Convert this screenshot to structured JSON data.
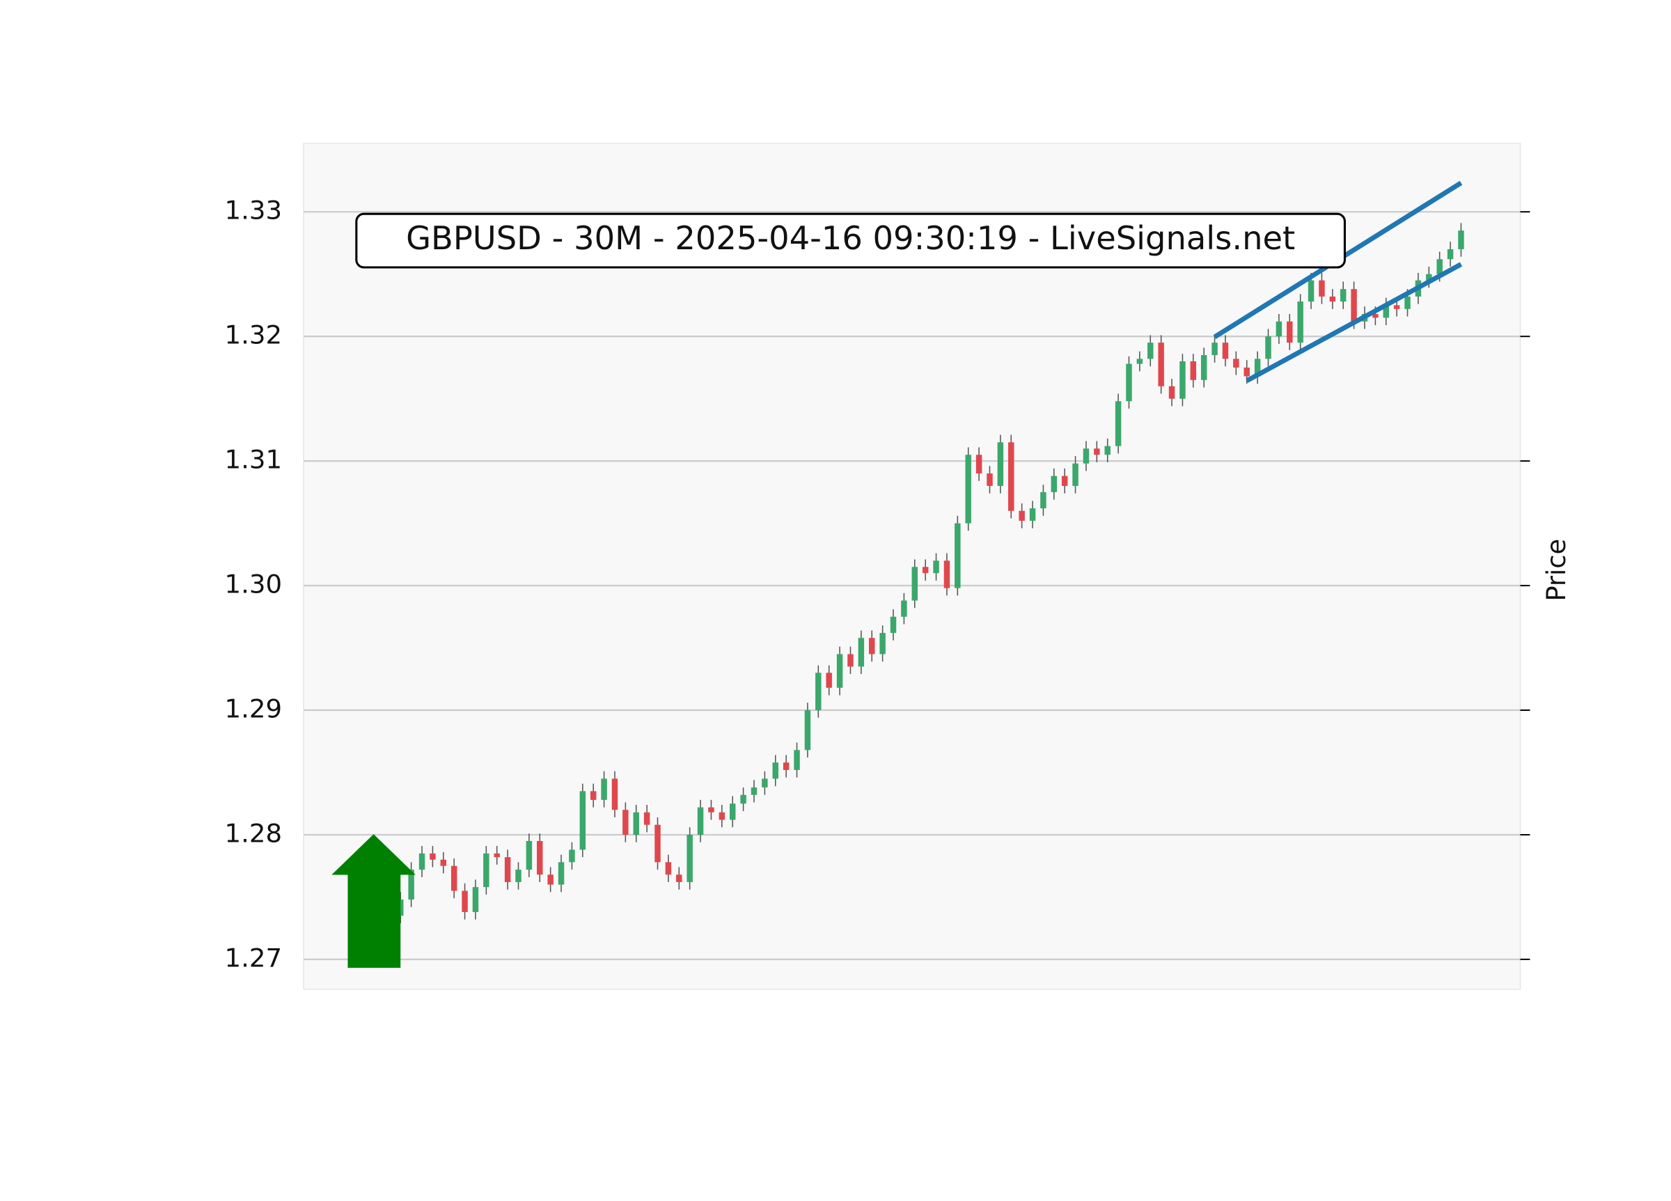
{
  "chart_data": {
    "type": "candlestick",
    "title": "GBPUSD - 30M - 2025-04-16 09:30:19 - LiveSignals.net",
    "ylabel": "Price",
    "ylim": [
      1.2676,
      1.3355
    ],
    "yticks": [
      1.27,
      1.28,
      1.29,
      {
        "value": 1.3,
        "label": "1.30"
      },
      1.31,
      1.32,
      1.33
    ],
    "grid": true,
    "up_color": "#3aa86b",
    "down_color": "#e0474c",
    "wick_color": "#555555",
    "open": [
      1.2735,
      1.2748,
      1.2772,
      1.2785,
      1.278,
      1.2775,
      1.2755,
      1.2738,
      1.2758,
      1.2785,
      1.2782,
      1.2762,
      1.2772,
      1.2795,
      1.2768,
      1.276,
      1.2778,
      1.2788,
      1.2835,
      1.2828,
      1.2845,
      1.282,
      1.28,
      1.2818,
      1.2808,
      1.2778,
      1.2768,
      1.2762,
      1.28,
      1.2822,
      1.2818,
      1.2812,
      1.2825,
      1.2832,
      1.2838,
      1.2845,
      1.2858,
      1.2852,
      1.2868,
      1.29,
      1.293,
      1.2918,
      1.2945,
      1.2935,
      1.2958,
      1.2945,
      1.2962,
      1.2975,
      1.2988,
      1.3015,
      1.301,
      1.302,
      1.2998,
      1.305,
      1.3105,
      1.309,
      1.308,
      1.3115,
      1.306,
      1.3052,
      1.3062,
      1.3075,
      1.3088,
      1.308,
      1.3098,
      1.311,
      1.3105,
      1.3112,
      1.3148,
      1.3178,
      1.3182,
      1.3195,
      1.316,
      1.315,
      1.318,
      1.3165,
      1.3185,
      1.3195,
      1.3182,
      1.3175,
      1.3168,
      1.3182,
      1.32,
      1.3212,
      1.3195,
      1.3228,
      1.3245,
      1.3232,
      1.3228,
      1.3238,
      1.3212,
      1.3218,
      1.3215,
      1.3225,
      1.3222,
      1.3232,
      1.3245,
      1.325,
      1.3262,
      1.327
    ],
    "high": [
      1.2754,
      1.2778,
      1.2791,
      1.2791,
      1.2786,
      1.2781,
      1.2761,
      1.2764,
      1.2791,
      1.2791,
      1.2788,
      1.2778,
      1.2801,
      1.2801,
      1.2774,
      1.2784,
      1.2794,
      1.2841,
      1.2841,
      1.2851,
      1.2851,
      1.2826,
      1.2824,
      1.2824,
      1.2814,
      1.2784,
      1.2774,
      1.2806,
      1.2828,
      1.2828,
      1.2824,
      1.2831,
      1.2838,
      1.2844,
      1.2851,
      1.2864,
      1.2864,
      1.2874,
      1.2906,
      1.2936,
      1.2936,
      1.2951,
      1.2951,
      1.2964,
      1.2964,
      1.2968,
      1.2981,
      1.2994,
      1.3021,
      1.3021,
      1.3026,
      1.3026,
      1.3056,
      1.3111,
      1.3111,
      1.3096,
      1.3121,
      1.3121,
      1.3066,
      1.3068,
      1.3081,
      1.3094,
      1.3094,
      1.3104,
      1.3116,
      1.3116,
      1.3118,
      1.3154,
      1.3184,
      1.3188,
      1.3201,
      1.3201,
      1.3166,
      1.3186,
      1.3186,
      1.3191,
      1.3201,
      1.3201,
      1.3188,
      1.3181,
      1.3188,
      1.3206,
      1.3218,
      1.3218,
      1.3234,
      1.3251,
      1.3251,
      1.3238,
      1.3244,
      1.3244,
      1.3224,
      1.3224,
      1.3231,
      1.3231,
      1.3238,
      1.3251,
      1.3256,
      1.3268,
      1.3276,
      1.3291
    ],
    "low": [
      1.2729,
      1.2742,
      1.2766,
      1.2774,
      1.2769,
      1.2749,
      1.2732,
      1.2732,
      1.2752,
      1.2776,
      1.2756,
      1.2756,
      1.2766,
      1.2762,
      1.2754,
      1.2754,
      1.2772,
      1.2782,
      1.2822,
      1.2822,
      1.2814,
      1.2794,
      1.2794,
      1.2802,
      1.2772,
      1.2762,
      1.2756,
      1.2756,
      1.2794,
      1.2812,
      1.2806,
      1.2806,
      1.2819,
      1.2826,
      1.2832,
      1.2839,
      1.2846,
      1.2846,
      1.2862,
      1.2894,
      1.2912,
      1.2912,
      1.2929,
      1.2929,
      1.2939,
      1.2939,
      1.2956,
      1.2969,
      1.2982,
      1.3004,
      1.3004,
      1.2992,
      1.2992,
      1.3044,
      1.3084,
      1.3074,
      1.3074,
      1.3054,
      1.3046,
      1.3046,
      1.3056,
      1.3069,
      1.3074,
      1.3074,
      1.3092,
      1.3099,
      1.3099,
      1.3106,
      1.3142,
      1.3172,
      1.3176,
      1.3154,
      1.3144,
      1.3144,
      1.3159,
      1.3159,
      1.3179,
      1.3176,
      1.3169,
      1.3162,
      1.3162,
      1.3176,
      1.3194,
      1.3189,
      1.3189,
      1.3222,
      1.3226,
      1.3222,
      1.3222,
      1.3206,
      1.3206,
      1.3209,
      1.3209,
      1.3216,
      1.3216,
      1.3226,
      1.3239,
      1.3244,
      1.3256,
      1.3264
    ],
    "close": [
      1.2748,
      1.2772,
      1.2785,
      1.278,
      1.2775,
      1.2755,
      1.2738,
      1.2758,
      1.2785,
      1.2782,
      1.2762,
      1.2772,
      1.2795,
      1.2768,
      1.276,
      1.2778,
      1.2788,
      1.2835,
      1.2828,
      1.2845,
      1.282,
      1.28,
      1.2818,
      1.2808,
      1.2778,
      1.2768,
      1.2762,
      1.28,
      1.2822,
      1.2818,
      1.2812,
      1.2825,
      1.2832,
      1.2838,
      1.2845,
      1.2858,
      1.2852,
      1.2868,
      1.29,
      1.293,
      1.2918,
      1.2945,
      1.2935,
      1.2958,
      1.2945,
      1.2962,
      1.2975,
      1.2988,
      1.3015,
      1.301,
      1.302,
      1.2998,
      1.305,
      1.3105,
      1.309,
      1.308,
      1.3115,
      1.306,
      1.3052,
      1.3062,
      1.3075,
      1.3088,
      1.308,
      1.3098,
      1.311,
      1.3105,
      1.3112,
      1.3148,
      1.3178,
      1.3182,
      1.3195,
      1.316,
      1.315,
      1.318,
      1.3165,
      1.3185,
      1.3195,
      1.3182,
      1.3175,
      1.3168,
      1.3182,
      1.32,
      1.3212,
      1.3195,
      1.3228,
      1.3245,
      1.3232,
      1.3228,
      1.3238,
      1.3212,
      1.3218,
      1.3215,
      1.3225,
      1.3222,
      1.3232,
      1.3245,
      1.325,
      1.3262,
      1.327,
      1.3285
    ],
    "trendlines": [
      {
        "x": [
          76,
          99
        ],
        "y": [
          1.31996,
          1.33232
        ],
        "color": "#1f77b4"
      },
      {
        "x": [
          79,
          99
        ],
        "y": [
          1.31644,
          1.32579
        ],
        "color": "#1f77b4"
      }
    ],
    "signal_color": "#008000"
  }
}
